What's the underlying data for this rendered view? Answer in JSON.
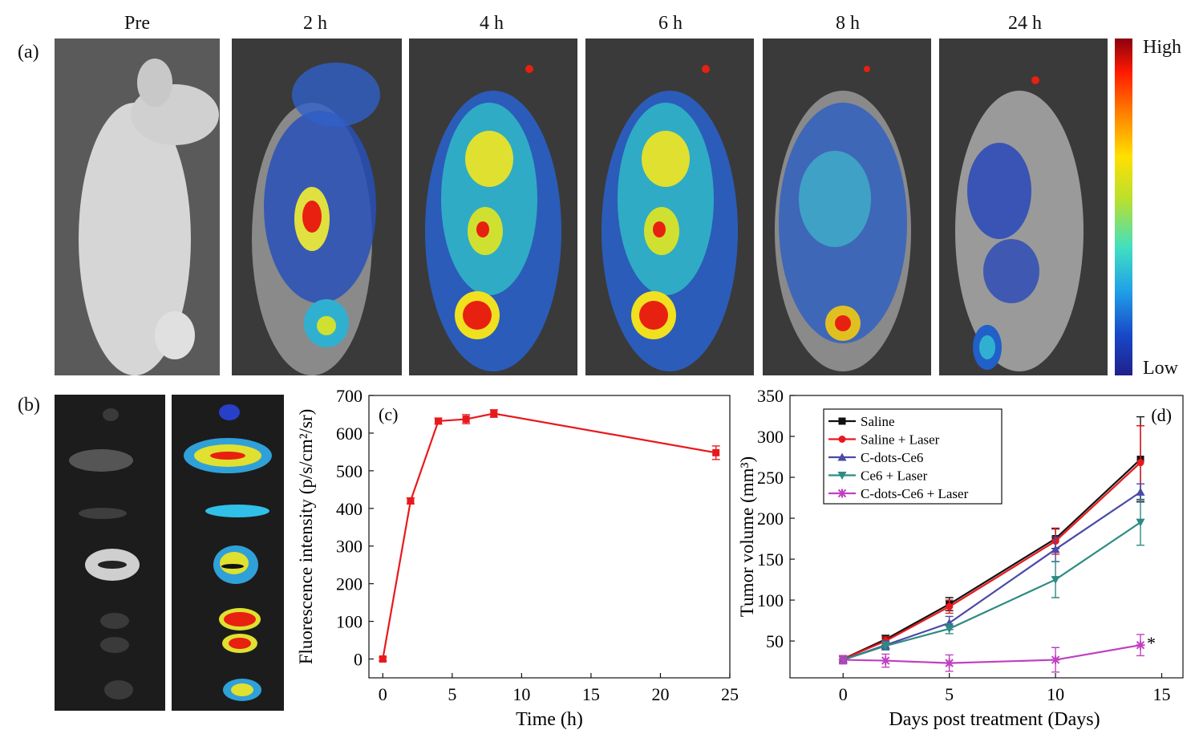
{
  "panel_labels": {
    "a": "(a)",
    "b": "(b)",
    "c": "(c)",
    "d": "(d)"
  },
  "timepoints": [
    "Pre",
    "2 h",
    "4 h",
    "6 h",
    "8 h",
    "24 h"
  ],
  "colorbar": {
    "high": "High",
    "low": "Low"
  },
  "chart_data": [
    {
      "id": "c",
      "type": "line",
      "xlabel": "Time (h)",
      "ylabel": "Fluorescence intensity (p/s/cm²/sr)",
      "xlim": [
        -1,
        25
      ],
      "ylim": [
        -50,
        700
      ],
      "xticks": [
        0,
        5,
        10,
        15,
        20,
        25
      ],
      "yticks": [
        0,
        100,
        200,
        300,
        400,
        500,
        600,
        700
      ],
      "grid": false,
      "series": [
        {
          "color": "#e8191c",
          "x": [
            0,
            2,
            4,
            6,
            8,
            24
          ],
          "y": [
            0,
            420,
            632,
            637,
            652,
            548
          ],
          "err": [
            5,
            8,
            8,
            12,
            10,
            18
          ]
        }
      ]
    },
    {
      "id": "d",
      "type": "line",
      "xlabel": "Days post treatment (Days)",
      "ylabel": "Tumor volume (mm³)",
      "xlim": [
        -2.5,
        16
      ],
      "ylim": [
        5,
        350
      ],
      "xticks": [
        0,
        5,
        10,
        15
      ],
      "yticks": [
        50,
        100,
        150,
        200,
        250,
        300,
        350
      ],
      "grid": false,
      "legend_position": "top-left",
      "annotation": "*",
      "series": [
        {
          "name": "Saline",
          "color": "#111111",
          "marker": "square",
          "x": [
            0,
            2,
            5,
            10,
            14
          ],
          "y": [
            28,
            52,
            95,
            175,
            272
          ],
          "err": [
            4,
            5,
            8,
            12,
            52
          ]
        },
        {
          "name": "Saline + Laser",
          "color": "#e8191c",
          "marker": "circle",
          "x": [
            0,
            2,
            5,
            10,
            14
          ],
          "y": [
            28,
            50,
            92,
            172,
            268
          ],
          "err": [
            4,
            5,
            8,
            16,
            45
          ]
        },
        {
          "name": "C-dots-Ce6",
          "color": "#4a4aa8",
          "marker": "triangle-up",
          "x": [
            0,
            2,
            5,
            10,
            14
          ],
          "y": [
            27,
            45,
            72,
            162,
            232
          ],
          "err": [
            4,
            5,
            8,
            15,
            10
          ]
        },
        {
          "name": "Ce6 + Laser",
          "color": "#2e8b82",
          "marker": "triangle-down",
          "x": [
            0,
            2,
            5,
            10,
            14
          ],
          "y": [
            27,
            44,
            65,
            125,
            195
          ],
          "err": [
            4,
            5,
            6,
            22,
            28
          ]
        },
        {
          "name": "C-dots-Ce6 + Laser",
          "color": "#c040c0",
          "marker": "star",
          "x": [
            0,
            2,
            5,
            10,
            14
          ],
          "y": [
            27,
            26,
            23,
            27,
            45
          ],
          "err": [
            5,
            8,
            10,
            15,
            13
          ]
        }
      ]
    }
  ]
}
